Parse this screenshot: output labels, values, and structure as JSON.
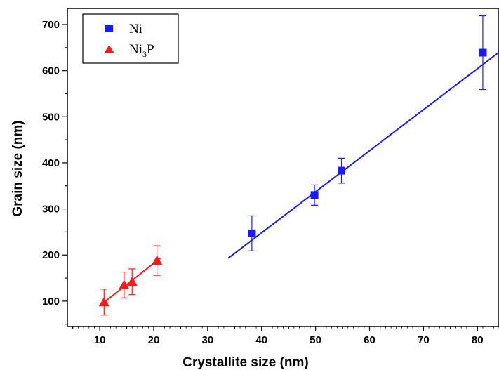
{
  "chart_data": {
    "type": "scatter",
    "xlabel": "Crystallite size (nm)",
    "ylabel": "Grain size (nm)",
    "xlim": [
      4,
      84
    ],
    "ylim": [
      45,
      735
    ],
    "x_ticks": [
      10,
      20,
      30,
      40,
      50,
      60,
      70,
      80
    ],
    "y_ticks": [
      100,
      200,
      300,
      400,
      500,
      600,
      700
    ],
    "grid": false,
    "legend_position": "top-left",
    "series": [
      {
        "name": "Ni",
        "marker": "square",
        "color": "#1a1aff",
        "points": [
          {
            "x": 38.2,
            "y": 247,
            "err": 38
          },
          {
            "x": 49.8,
            "y": 330,
            "err": 22
          },
          {
            "x": 54.8,
            "y": 383,
            "err": 27
          },
          {
            "x": 81.0,
            "y": 639,
            "err": 80
          }
        ],
        "fit": {
          "x": [
            33.8,
            84
          ],
          "y": [
            193,
            640
          ]
        }
      },
      {
        "name": "Ni3P",
        "legend_text": "Ni",
        "legend_subscript": "3",
        "legend_suffix": "P",
        "marker": "triangle",
        "color": "#ff1a1a",
        "points": [
          {
            "x": 10.8,
            "y": 98,
            "err": 28
          },
          {
            "x": 14.5,
            "y": 135,
            "err": 28
          },
          {
            "x": 16.0,
            "y": 142,
            "err": 28
          },
          {
            "x": 20.6,
            "y": 188,
            "err": 32
          }
        ],
        "fit": {
          "x": [
            10.3,
            21.2
          ],
          "y": [
            93,
            193
          ]
        }
      }
    ]
  }
}
